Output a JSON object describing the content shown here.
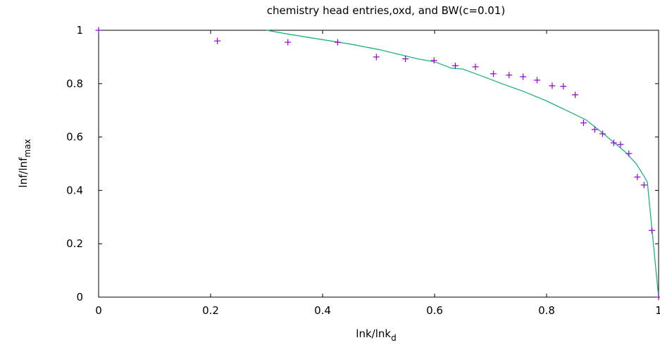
{
  "chart_data": {
    "type": "scatter",
    "title": "chemistry head entries,oxd, and BW(c=0.01)",
    "xlabel": {
      "main": "lnk/lnk",
      "sub": "d"
    },
    "ylabel": {
      "main": "lnf/lnf",
      "sub": "max"
    },
    "xlim": [
      0,
      1
    ],
    "ylim": [
      0,
      1
    ],
    "x_ticks": [
      "0",
      "0.2",
      "0.4",
      "0.6",
      "0.8",
      "1"
    ],
    "y_ticks": [
      "0",
      "0.2",
      "0.4",
      "0.6",
      "0.8",
      "1"
    ],
    "grid": false,
    "legend": "none",
    "colors": {
      "points": "#9400d3",
      "curve": "#20b283"
    },
    "series": [
      {
        "kind": "points",
        "marker": "plus",
        "x": [
          0.0,
          0.212,
          0.338,
          0.427,
          0.496,
          0.548,
          0.599,
          0.637,
          0.673,
          0.705,
          0.733,
          0.758,
          0.783,
          0.81,
          0.83,
          0.851,
          0.866,
          0.886,
          0.9,
          0.92,
          0.932,
          0.947,
          0.962,
          0.974,
          0.988,
          1.0
        ],
        "y": [
          1.0,
          0.96,
          0.955,
          0.955,
          0.9,
          0.893,
          0.887,
          0.867,
          0.863,
          0.837,
          0.832,
          0.826,
          0.813,
          0.792,
          0.79,
          0.758,
          0.653,
          0.628,
          0.612,
          0.578,
          0.572,
          0.538,
          0.45,
          0.42,
          0.25,
          0.0
        ]
      },
      {
        "kind": "line",
        "x": [
          0.3,
          0.34,
          0.4,
          0.45,
          0.5,
          0.54,
          0.57,
          0.6,
          0.63,
          0.65,
          0.68,
          0.72,
          0.76,
          0.8,
          0.82,
          0.85,
          0.87,
          0.9,
          0.92,
          0.94,
          0.96,
          0.975,
          0.98,
          1.0
        ],
        "y": [
          1.0,
          0.985,
          0.965,
          0.948,
          0.928,
          0.908,
          0.893,
          0.882,
          0.858,
          0.855,
          0.832,
          0.8,
          0.77,
          0.735,
          0.715,
          0.685,
          0.665,
          0.615,
          0.58,
          0.545,
          0.5,
          0.45,
          0.43,
          0.0
        ]
      }
    ]
  }
}
